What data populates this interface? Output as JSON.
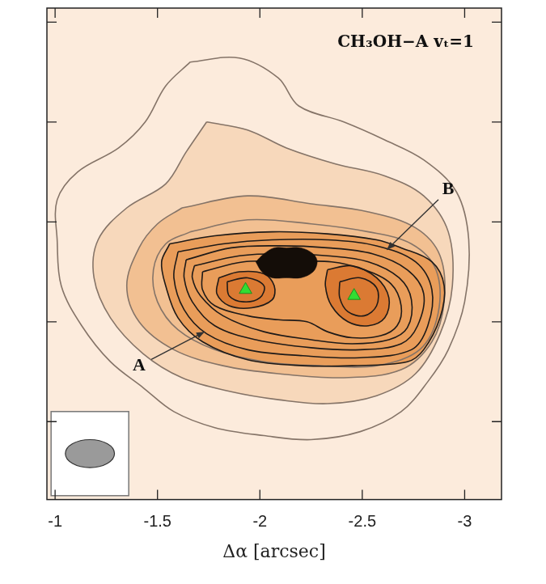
{
  "chart_data": {
    "type": "contour",
    "title": "CH₃OH−A vₜ=1",
    "x_label": "Δα [arcsec]",
    "xlim": [
      -0.96,
      -3.18
    ],
    "xticks": [
      -1,
      -1.5,
      -2,
      -2.5,
      -3
    ],
    "ylim": [
      -0.89,
      1.57
    ],
    "yticks": [
      -0.5,
      0,
      0.5,
      1,
      1.5
    ],
    "grid": false,
    "tick_labels": "x",
    "series": [
      {
        "type": "area",
        "color": "#f7d8bb",
        "values": [
          [
            -1.74,
            1.0
          ],
          [
            -1.94,
            0.96
          ],
          [
            -2.13,
            0.87
          ],
          [
            -2.37,
            0.79
          ],
          [
            -2.61,
            0.73
          ],
          [
            -2.8,
            0.63
          ],
          [
            -2.92,
            0.45
          ],
          [
            -2.94,
            0.18
          ],
          [
            -2.88,
            -0.06
          ],
          [
            -2.76,
            -0.26
          ],
          [
            -2.57,
            -0.37
          ],
          [
            -2.33,
            -0.41
          ],
          [
            -2.09,
            -0.39
          ],
          [
            -1.86,
            -0.35
          ],
          [
            -1.62,
            -0.28
          ],
          [
            -1.43,
            -0.16
          ],
          [
            -1.27,
            0.02
          ],
          [
            -1.19,
            0.22
          ],
          [
            -1.21,
            0.41
          ],
          [
            -1.35,
            0.57
          ],
          [
            -1.54,
            0.69
          ],
          [
            -1.64,
            0.85
          ]
        ]
      },
      {
        "type": "area",
        "color": "#f2c092",
        "values": [
          [
            -1.62,
            0.57
          ],
          [
            -1.94,
            0.63
          ],
          [
            -2.25,
            0.59
          ],
          [
            -2.53,
            0.55
          ],
          [
            -2.76,
            0.47
          ],
          [
            -2.88,
            0.33
          ],
          [
            -2.9,
            0.1
          ],
          [
            -2.84,
            -0.1
          ],
          [
            -2.69,
            -0.24
          ],
          [
            -2.41,
            -0.28
          ],
          [
            -2.09,
            -0.26
          ],
          [
            -1.82,
            -0.22
          ],
          [
            -1.58,
            -0.14
          ],
          [
            -1.41,
            0
          ],
          [
            -1.35,
            0.18
          ],
          [
            -1.41,
            0.37
          ],
          [
            -1.5,
            0.49
          ]
        ]
      },
      {
        "type": "area",
        "color": "#e99d5a",
        "values": [
          [
            -1.56,
            0.39
          ],
          [
            -1.78,
            0.43
          ],
          [
            -2.06,
            0.45
          ],
          [
            -2.33,
            0.44
          ],
          [
            -2.57,
            0.41
          ],
          [
            -2.69,
            0.37
          ],
          [
            -2.84,
            0.3
          ],
          [
            -2.9,
            0.18
          ],
          [
            -2.88,
            0.02
          ],
          [
            -2.8,
            -0.14
          ],
          [
            -2.72,
            -0.2
          ],
          [
            -2.45,
            -0.22
          ],
          [
            -2.21,
            -0.22
          ],
          [
            -1.94,
            -0.19
          ],
          [
            -1.72,
            -0.1
          ],
          [
            -1.6,
            0.02
          ],
          [
            -1.54,
            0.18
          ],
          [
            -1.52,
            0.3
          ]
        ]
      },
      {
        "type": "area",
        "color": "#db7a33",
        "values": [
          [
            -1.8,
            0.22
          ],
          [
            -1.9,
            0.25
          ],
          [
            -2.02,
            0.24
          ],
          [
            -2.07,
            0.18
          ],
          [
            -2.06,
            0.11
          ],
          [
            -1.96,
            0.07
          ],
          [
            -1.85,
            0.08
          ],
          [
            -1.79,
            0.14
          ]
        ]
      },
      {
        "type": "area",
        "color": "#db7a33",
        "values": [
          [
            -2.33,
            0.26
          ],
          [
            -2.45,
            0.28
          ],
          [
            -2.57,
            0.22
          ],
          [
            -2.63,
            0.12
          ],
          [
            -2.61,
            0.02
          ],
          [
            -2.53,
            -0.02
          ],
          [
            -2.43,
            0
          ],
          [
            -2.35,
            0.08
          ],
          [
            -2.32,
            0.18
          ]
        ]
      },
      {
        "type": "line",
        "color": "#857468",
        "values": [
          [
            -1.66,
            1.3
          ],
          [
            -1.9,
            1.32
          ],
          [
            -2.09,
            1.22
          ],
          [
            -2.19,
            1.08
          ],
          [
            -2.41,
            1.0
          ],
          [
            -2.61,
            0.91
          ],
          [
            -2.8,
            0.81
          ],
          [
            -2.96,
            0.65
          ],
          [
            -3.02,
            0.41
          ],
          [
            -3.0,
            0.1
          ],
          [
            -2.92,
            -0.14
          ],
          [
            -2.82,
            -0.3
          ],
          [
            -2.69,
            -0.45
          ],
          [
            -2.49,
            -0.55
          ],
          [
            -2.25,
            -0.59
          ],
          [
            -2.02,
            -0.57
          ],
          [
            -1.78,
            -0.53
          ],
          [
            -1.58,
            -0.45
          ],
          [
            -1.43,
            -0.33
          ],
          [
            -1.27,
            -0.2
          ],
          [
            -1.13,
            -0.02
          ],
          [
            -1.03,
            0.18
          ],
          [
            -1.01,
            0.41
          ],
          [
            -1.01,
            0.61
          ],
          [
            -1.11,
            0.75
          ],
          [
            -1.31,
            0.87
          ],
          [
            -1.44,
            1.0
          ],
          [
            -1.54,
            1.18
          ]
        ]
      },
      {
        "type": "line",
        "color": "#857468",
        "values": [
          [
            -1.74,
            1.0
          ],
          [
            -1.94,
            0.96
          ],
          [
            -2.13,
            0.87
          ],
          [
            -2.37,
            0.79
          ],
          [
            -2.61,
            0.73
          ],
          [
            -2.8,
            0.63
          ],
          [
            -2.92,
            0.45
          ],
          [
            -2.94,
            0.18
          ],
          [
            -2.88,
            -0.06
          ],
          [
            -2.76,
            -0.26
          ],
          [
            -2.57,
            -0.37
          ],
          [
            -2.33,
            -0.41
          ],
          [
            -2.09,
            -0.39
          ],
          [
            -1.86,
            -0.35
          ],
          [
            -1.62,
            -0.28
          ],
          [
            -1.43,
            -0.16
          ],
          [
            -1.27,
            0.02
          ],
          [
            -1.19,
            0.22
          ],
          [
            -1.21,
            0.41
          ],
          [
            -1.35,
            0.57
          ],
          [
            -1.54,
            0.69
          ],
          [
            -1.64,
            0.85
          ]
        ]
      },
      {
        "type": "line",
        "color": "#857468",
        "values": [
          [
            -1.62,
            0.57
          ],
          [
            -1.94,
            0.63
          ],
          [
            -2.25,
            0.59
          ],
          [
            -2.53,
            0.55
          ],
          [
            -2.76,
            0.47
          ],
          [
            -2.88,
            0.33
          ],
          [
            -2.9,
            0.1
          ],
          [
            -2.84,
            -0.1
          ],
          [
            -2.69,
            -0.24
          ],
          [
            -2.41,
            -0.28
          ],
          [
            -2.09,
            -0.26
          ],
          [
            -1.82,
            -0.22
          ],
          [
            -1.58,
            -0.14
          ],
          [
            -1.41,
            0
          ],
          [
            -1.35,
            0.18
          ],
          [
            -1.41,
            0.37
          ],
          [
            -1.5,
            0.49
          ]
        ]
      },
      {
        "type": "line",
        "color": "#857468",
        "values": [
          [
            -1.66,
            0.45
          ],
          [
            -1.94,
            0.51
          ],
          [
            -2.25,
            0.49
          ],
          [
            -2.53,
            0.45
          ],
          [
            -2.74,
            0.39
          ],
          [
            -2.86,
            0.26
          ],
          [
            -2.87,
            0.04
          ],
          [
            -2.78,
            -0.14
          ],
          [
            -2.57,
            -0.22
          ],
          [
            -2.29,
            -0.22
          ],
          [
            -2.02,
            -0.2
          ],
          [
            -1.78,
            -0.14
          ],
          [
            -1.6,
            -0.04
          ],
          [
            -1.5,
            0.1
          ],
          [
            -1.48,
            0.26
          ],
          [
            -1.54,
            0.39
          ]
        ]
      },
      {
        "type": "line",
        "color": "#1e1a18",
        "values": [
          [
            -1.56,
            0.39
          ],
          [
            -1.78,
            0.43
          ],
          [
            -2.06,
            0.45
          ],
          [
            -2.33,
            0.44
          ],
          [
            -2.57,
            0.41
          ],
          [
            -2.69,
            0.37
          ],
          [
            -2.84,
            0.3
          ],
          [
            -2.9,
            0.18
          ],
          [
            -2.88,
            0.02
          ],
          [
            -2.8,
            -0.14
          ],
          [
            -2.72,
            -0.2
          ],
          [
            -2.45,
            -0.22
          ],
          [
            -2.21,
            -0.22
          ],
          [
            -1.94,
            -0.19
          ],
          [
            -1.72,
            -0.1
          ],
          [
            -1.6,
            0.02
          ],
          [
            -1.54,
            0.18
          ],
          [
            -1.52,
            0.3
          ]
        ]
      },
      {
        "type": "line",
        "color": "#1e1a18",
        "values": [
          [
            -1.6,
            0.35
          ],
          [
            -1.82,
            0.39
          ],
          [
            -2.06,
            0.41
          ],
          [
            -2.33,
            0.41
          ],
          [
            -2.57,
            0.38
          ],
          [
            -2.76,
            0.3
          ],
          [
            -2.84,
            0.16
          ],
          [
            -2.82,
            -0.02
          ],
          [
            -2.74,
            -0.14
          ],
          [
            -2.49,
            -0.18
          ],
          [
            -2.21,
            -0.17
          ],
          [
            -1.94,
            -0.14
          ],
          [
            -1.74,
            -0.06
          ],
          [
            -1.63,
            0.06
          ],
          [
            -1.58,
            0.22
          ]
        ]
      },
      {
        "type": "line",
        "color": "#1e1a18",
        "values": [
          [
            -1.64,
            0.31
          ],
          [
            -1.86,
            0.37
          ],
          [
            -2.09,
            0.38
          ],
          [
            -2.33,
            0.37
          ],
          [
            -2.55,
            0.34
          ],
          [
            -2.72,
            0.26
          ],
          [
            -2.8,
            0.14
          ],
          [
            -2.77,
            -0.02
          ],
          [
            -2.69,
            -0.11
          ],
          [
            -2.49,
            -0.14
          ],
          [
            -2.25,
            -0.13
          ],
          [
            -1.98,
            -0.09
          ],
          [
            -1.78,
            -0.02
          ],
          [
            -1.67,
            0.1
          ],
          [
            -1.63,
            0.22
          ]
        ]
      },
      {
        "type": "line",
        "color": "#1e1a18",
        "values": [
          [
            -1.68,
            0.28
          ],
          [
            -1.9,
            0.33
          ],
          [
            -2.11,
            0.34
          ],
          [
            -2.33,
            0.33
          ],
          [
            -2.53,
            0.3
          ],
          [
            -2.68,
            0.22
          ],
          [
            -2.74,
            0.11
          ],
          [
            -2.72,
            -0.03
          ],
          [
            -2.63,
            -0.09
          ],
          [
            -2.45,
            -0.11
          ],
          [
            -2.25,
            -0.09
          ],
          [
            -2.02,
            -0.05
          ],
          [
            -1.82,
            0.03
          ],
          [
            -1.71,
            0.13
          ],
          [
            -1.67,
            0.22
          ]
        ]
      },
      {
        "type": "line",
        "color": "#1e1a18",
        "values": [
          [
            -1.72,
            0.25
          ],
          [
            -1.92,
            0.3
          ],
          [
            -2.13,
            0.3
          ],
          [
            -2.35,
            0.3
          ],
          [
            -2.51,
            0.26
          ],
          [
            -2.64,
            0.19
          ],
          [
            -2.69,
            0.08
          ],
          [
            -2.67,
            -0.02
          ],
          [
            -2.59,
            -0.07
          ],
          [
            -2.45,
            -0.08
          ],
          [
            -2.33,
            -0.05
          ],
          [
            -2.23,
            0
          ],
          [
            -2.09,
            0.01
          ],
          [
            -1.94,
            0.03
          ],
          [
            -1.78,
            0.08
          ],
          [
            -1.72,
            0.16
          ]
        ]
      },
      {
        "type": "line",
        "color": "#1e1a18",
        "values": [
          [
            -1.8,
            0.22
          ],
          [
            -1.9,
            0.25
          ],
          [
            -2.02,
            0.24
          ],
          [
            -2.07,
            0.18
          ],
          [
            -2.06,
            0.11
          ],
          [
            -1.96,
            0.07
          ],
          [
            -1.85,
            0.08
          ],
          [
            -1.79,
            0.14
          ]
        ]
      },
      {
        "type": "line",
        "color": "#1e1a18",
        "values": [
          [
            -2.33,
            0.26
          ],
          [
            -2.45,
            0.28
          ],
          [
            -2.57,
            0.22
          ],
          [
            -2.63,
            0.12
          ],
          [
            -2.61,
            0.02
          ],
          [
            -2.53,
            -0.02
          ],
          [
            -2.43,
            0
          ],
          [
            -2.35,
            0.08
          ],
          [
            -2.32,
            0.18
          ]
        ]
      },
      {
        "type": "line",
        "color": "#1e1a18",
        "values": [
          [
            -1.84,
            0.2
          ],
          [
            -1.94,
            0.22
          ],
          [
            -2.02,
            0.18
          ],
          [
            -2.0,
            0.12
          ],
          [
            -1.92,
            0.1
          ],
          [
            -1.85,
            0.13
          ]
        ]
      },
      {
        "type": "line",
        "color": "#1e1a18",
        "values": [
          [
            -2.39,
            0.2
          ],
          [
            -2.49,
            0.22
          ],
          [
            -2.57,
            0.17
          ],
          [
            -2.57,
            0.08
          ],
          [
            -2.51,
            0.03
          ],
          [
            -2.43,
            0.05
          ],
          [
            -2.39,
            0.12
          ]
        ]
      },
      {
        "type": "area",
        "color": "#140d08",
        "values": [
          [
            -1.98,
            0.3
          ],
          [
            -2.02,
            0.34
          ],
          [
            -2.07,
            0.37
          ],
          [
            -2.13,
            0.37
          ],
          [
            -2.2,
            0.37
          ],
          [
            -2.26,
            0.34
          ],
          [
            -2.28,
            0.3
          ],
          [
            -2.26,
            0.25
          ],
          [
            -2.2,
            0.22
          ],
          [
            -2.13,
            0.22
          ],
          [
            -2.06,
            0.22
          ],
          [
            -2.01,
            0.25
          ]
        ]
      },
      {
        "type": "scatter",
        "color": "#33dd33",
        "marker": "triangle",
        "values": [
          [
            -1.93,
            0.16
          ],
          [
            -2.46,
            0.13
          ]
        ]
      }
    ],
    "annotations": [
      {
        "text": "A",
        "x": -1.41,
        "y": -0.22,
        "point": [
          -1.73,
          -0.05
        ]
      },
      {
        "text": "B",
        "x": -2.92,
        "y": 0.66,
        "point": [
          -2.62,
          0.36
        ]
      }
    ],
    "beam": {
      "x": -1.17,
      "y": -0.66,
      "major": 0.24,
      "minor": 0.14
    }
  }
}
